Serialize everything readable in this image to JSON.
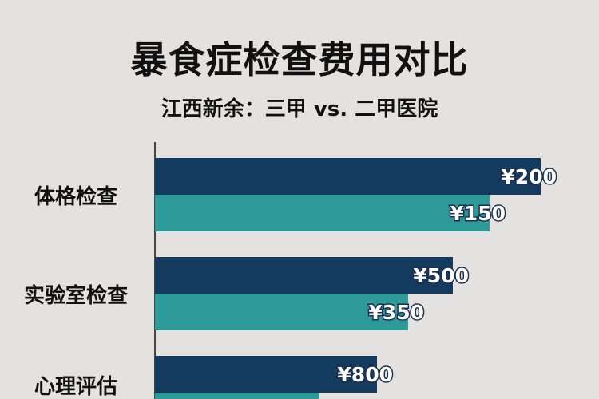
{
  "chart_data": {
    "type": "bar",
    "orientation": "horizontal",
    "title": "暴食症检查费用对比",
    "subtitle": "江西新余：三甲 vs. 二甲医院",
    "categories": [
      "体格检查",
      "实验室检查",
      "心理评估"
    ],
    "series": [
      {
        "values": [
          200,
          500,
          800
        ],
        "labels": [
          "¥200",
          "¥500",
          "¥800"
        ],
        "color": "#143a5e"
      },
      {
        "values": [
          150,
          350,
          null
        ],
        "labels": [
          "¥150",
          "¥350",
          ""
        ],
        "color": "#2e9a98"
      }
    ],
    "grid": false,
    "legend": "none"
  }
}
